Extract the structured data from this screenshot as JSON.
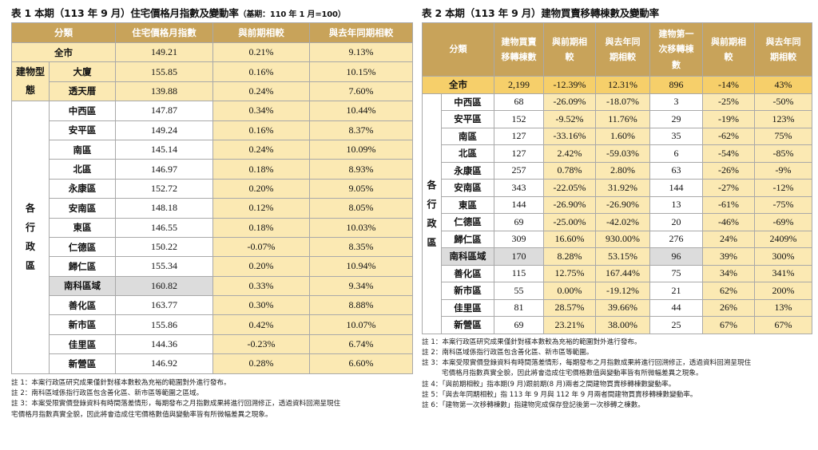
{
  "left": {
    "title": "表 1 本期（113 年 9 月）住宅價格月指數及變動率",
    "title_note": "（基期：110 年 1 月=100）",
    "headers": [
      "分類",
      "住宅價格月指數",
      "與前期相較",
      "與去年同期相較"
    ],
    "total": {
      "name": "全市",
      "idx": "149.21",
      "mom": "0.21%",
      "yoy": "9.13%"
    },
    "building_group": "建物型態",
    "buildings": [
      {
        "name": "大廈",
        "idx": "155.85",
        "mom": "0.16%",
        "yoy": "10.15%"
      },
      {
        "name": "透天厝",
        "idx": "139.88",
        "mom": "0.24%",
        "yoy": "7.60%"
      }
    ],
    "district_group": "各行政區",
    "districts": [
      {
        "name": "中西區",
        "idx": "147.87",
        "mom": "0.34%",
        "yoy": "10.44%"
      },
      {
        "name": "安平區",
        "idx": "149.24",
        "mom": "0.16%",
        "yoy": "8.37%"
      },
      {
        "name": "南區",
        "idx": "145.14",
        "mom": "0.24%",
        "yoy": "10.09%"
      },
      {
        "name": "北區",
        "idx": "146.97",
        "mom": "0.18%",
        "yoy": "8.93%"
      },
      {
        "name": "永康區",
        "idx": "152.72",
        "mom": "0.20%",
        "yoy": "9.05%"
      },
      {
        "name": "安南區",
        "idx": "148.18",
        "mom": "0.12%",
        "yoy": "8.05%"
      },
      {
        "name": "東區",
        "idx": "146.55",
        "mom": "0.18%",
        "yoy": "10.03%"
      },
      {
        "name": "仁德區",
        "idx": "150.22",
        "mom": "-0.07%",
        "yoy": "8.35%"
      },
      {
        "name": "歸仁區",
        "idx": "155.34",
        "mom": "0.20%",
        "yoy": "10.94%"
      },
      {
        "name": "南科區域",
        "idx": "160.82",
        "mom": "0.33%",
        "yoy": "9.34%"
      },
      {
        "name": "善化區",
        "idx": "163.77",
        "mom": "0.30%",
        "yoy": "8.88%"
      },
      {
        "name": "新市區",
        "idx": "155.86",
        "mom": "0.42%",
        "yoy": "10.07%"
      },
      {
        "name": "佳里區",
        "idx": "144.36",
        "mom": "-0.23%",
        "yoy": "6.74%"
      },
      {
        "name": "新營區",
        "idx": "146.92",
        "mom": "0.28%",
        "yoy": "6.60%"
      }
    ],
    "notes": [
      "註 1：本案行政區研究成果僅針對樣本數較為充裕的範圍對外進行發布。",
      "註 2：南科區域係指行政區包含善化區、新市區等範圍之區域。",
      "註 3：本案受限實價登錄資料有時間落差情形，每期發布之月指數成果將進行回溯修正，透過資料回溯呈現住",
      "宅價格月指數真實全貌，因此將會造成住宅價格數值與變動率皆有所微幅差異之現象。"
    ]
  },
  "right": {
    "title": "表 2 本期（113 年 9 月）建物買賣移轉棟數及變動率",
    "headers": [
      "分類",
      "建物買賣移轉棟數",
      "與前期相較",
      "與去年同期相較",
      "建物第一次移轉棟數",
      "與前期相較",
      "與去年同期相較"
    ],
    "total": {
      "name": "全市",
      "c1": "2,199",
      "c2": "-12.39%",
      "c3": "12.31%",
      "c4": "896",
      "c5": "-14%",
      "c6": "43%"
    },
    "district_group": "各行政區",
    "districts": [
      {
        "name": "中西區",
        "c1": "68",
        "c2": "-26.09%",
        "c3": "-18.07%",
        "c4": "3",
        "c5": "-25%",
        "c6": "-50%"
      },
      {
        "name": "安平區",
        "c1": "152",
        "c2": "-9.52%",
        "c3": "11.76%",
        "c4": "29",
        "c5": "-19%",
        "c6": "123%"
      },
      {
        "name": "南區",
        "c1": "127",
        "c2": "-33.16%",
        "c3": "1.60%",
        "c4": "35",
        "c5": "-62%",
        "c6": "75%"
      },
      {
        "name": "北區",
        "c1": "127",
        "c2": "2.42%",
        "c3": "-59.03%",
        "c4": "6",
        "c5": "-54%",
        "c6": "-85%"
      },
      {
        "name": "永康區",
        "c1": "257",
        "c2": "0.78%",
        "c3": "2.80%",
        "c4": "63",
        "c5": "-26%",
        "c6": "-9%"
      },
      {
        "name": "安南區",
        "c1": "343",
        "c2": "-22.05%",
        "c3": "31.92%",
        "c4": "144",
        "c5": "-27%",
        "c6": "-12%"
      },
      {
        "name": "東區",
        "c1": "144",
        "c2": "-26.90%",
        "c3": "-26.90%",
        "c4": "13",
        "c5": "-61%",
        "c6": "-75%"
      },
      {
        "name": "仁德區",
        "c1": "69",
        "c2": "-25.00%",
        "c3": "-42.02%",
        "c4": "20",
        "c5": "-46%",
        "c6": "-69%"
      },
      {
        "name": "歸仁區",
        "c1": "309",
        "c2": "16.60%",
        "c3": "930.00%",
        "c4": "276",
        "c5": "24%",
        "c6": "2409%"
      },
      {
        "name": "南科區域",
        "c1": "170",
        "c2": "8.28%",
        "c3": "53.15%",
        "c4": "96",
        "c5": "39%",
        "c6": "300%"
      },
      {
        "name": "善化區",
        "c1": "115",
        "c2": "12.75%",
        "c3": "167.44%",
        "c4": "75",
        "c5": "34%",
        "c6": "341%"
      },
      {
        "name": "新市區",
        "c1": "55",
        "c2": "0.00%",
        "c3": "-19.12%",
        "c4": "21",
        "c5": "62%",
        "c6": "200%"
      },
      {
        "name": "佳里區",
        "c1": "81",
        "c2": "28.57%",
        "c3": "39.66%",
        "c4": "44",
        "c5": "26%",
        "c6": "13%"
      },
      {
        "name": "新營區",
        "c1": "69",
        "c2": "23.21%",
        "c3": "38.00%",
        "c4": "25",
        "c5": "67%",
        "c6": "67%"
      }
    ],
    "notes": [
      "註 1：本案行政區研究成果僅針對樣本數較為充裕的範圍對外進行發布。",
      "註 2：南科區域係指行政區包含善化區、新市區等範圍。",
      "註 3：本案受限實價登錄資料有時間落差情形，每期發布之月指數成果將進行回溯修正，透過資料回溯呈現住",
      "宅價格月指數真實全貌，因此將會造成住宅價格數值與變動率皆有所微幅差異之現象。",
      "註 4：「與前期相較」指本期(9 月)跟前期(8 月)兩者之間建物買賣移轉棟數變動率。",
      "註 5：「與去年同期相較」指 113 年 9 月與 112 年 9 月兩者間建物買賣移轉棟數變動率。",
      "註 6：「建物第一次移轉棟數」指建物完成保存登記後第一次移轉之棟數。"
    ]
  }
}
